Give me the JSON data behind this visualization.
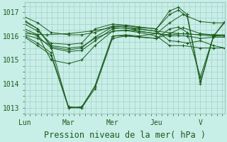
{
  "bg_color": "#c8eee8",
  "grid_color": "#a0c8c0",
  "line_color": "#1a5c1a",
  "marker": "+",
  "xlim": [
    0,
    4.55
  ],
  "ylim": [
    1012.75,
    1017.4
  ],
  "yticks": [
    1013,
    1014,
    1015,
    1016,
    1017
  ],
  "xtick_labels": [
    "Lun",
    "Mar",
    "Mer",
    "Jeu",
    "V"
  ],
  "xtick_pos": [
    0,
    1,
    2,
    3,
    4
  ],
  "xlabel": "Pression niveau de la mer( hPa )",
  "xlabel_fontsize": 8.5,
  "tick_fontsize": 7,
  "series": [
    {
      "x": [
        0,
        0.5,
        1.0,
        1.5,
        2.0,
        2.5,
        3.0,
        3.5,
        4.0,
        4.55
      ],
      "y": [
        1016.1,
        1016.05,
        1016.1,
        1016.2,
        1016.35,
        1016.3,
        1016.2,
        1016.1,
        1016.05,
        1016.05
      ]
    },
    {
      "x": [
        0,
        0.3,
        0.6,
        1.0,
        1.3,
        1.6,
        2.0,
        2.3,
        2.6,
        3.0,
        3.3,
        3.6,
        4.0,
        4.3,
        4.55
      ],
      "y": [
        1016.05,
        1015.9,
        1015.6,
        1013.0,
        1013.0,
        1013.8,
        1015.9,
        1016.0,
        1015.95,
        1015.9,
        1016.1,
        1016.35,
        1016.1,
        1016.05,
        1016.0
      ]
    },
    {
      "x": [
        0,
        0.3,
        0.6,
        1.0,
        1.3,
        1.6,
        2.0,
        2.3,
        2.6,
        3.0,
        3.3,
        3.6,
        4.0,
        4.3,
        4.55
      ],
      "y": [
        1016.0,
        1015.7,
        1015.3,
        1013.05,
        1013.0,
        1013.9,
        1016.0,
        1016.05,
        1016.0,
        1016.1,
        1016.55,
        1016.9,
        1016.6,
        1016.55,
        1016.55
      ]
    },
    {
      "x": [
        0,
        0.3,
        0.6,
        1.0,
        1.3,
        1.6,
        2.0,
        2.3,
        2.6,
        3.0,
        3.3,
        3.6,
        4.0,
        4.3,
        4.55
      ],
      "y": [
        1016.2,
        1016.0,
        1015.5,
        1015.35,
        1015.4,
        1015.8,
        1016.3,
        1016.35,
        1016.2,
        1016.1,
        1016.05,
        1016.1,
        1016.05,
        1016.0,
        1016.0
      ]
    },
    {
      "x": [
        0,
        0.3,
        0.6,
        1.0,
        1.3,
        1.6,
        2.0,
        2.3,
        2.6,
        3.0,
        3.3,
        3.6,
        4.0,
        4.3,
        4.55
      ],
      "y": [
        1016.3,
        1016.05,
        1015.0,
        1014.85,
        1015.0,
        1015.6,
        1016.2,
        1016.23,
        1016.15,
        1016.0,
        1015.6,
        1015.6,
        1015.5,
        1015.5,
        1015.5
      ]
    },
    {
      "x": [
        0,
        0.3,
        0.6,
        1.0,
        1.3,
        1.6,
        2.0,
        2.3,
        2.6,
        3.0,
        3.3,
        3.5,
        3.7,
        4.0,
        4.3,
        4.55
      ],
      "y": [
        1016.5,
        1016.2,
        1015.7,
        1015.65,
        1015.7,
        1016.3,
        1016.5,
        1016.45,
        1016.35,
        1016.3,
        1017.05,
        1017.2,
        1016.9,
        1014.1,
        1016.0,
        1016.6
      ]
    },
    {
      "x": [
        0,
        0.3,
        0.6,
        1.0,
        1.3,
        1.6,
        2.0,
        2.3,
        2.6,
        3.0,
        3.3,
        3.5,
        3.7,
        4.0,
        4.3,
        4.55
      ],
      "y": [
        1015.95,
        1015.6,
        1015.2,
        1013.0,
        1013.05,
        1013.9,
        1016.0,
        1016.02,
        1015.97,
        1015.9,
        1016.3,
        1016.37,
        1016.15,
        1014.3,
        1016.0,
        1016.02
      ]
    },
    {
      "x": [
        0,
        0.3,
        0.6,
        1.0,
        1.3,
        1.6,
        2.0,
        2.3,
        2.6,
        3.0,
        3.3,
        3.5,
        3.7,
        4.0,
        4.3,
        4.55
      ],
      "y": [
        1016.65,
        1016.3,
        1015.6,
        1015.5,
        1015.55,
        1015.9,
        1016.2,
        1016.25,
        1016.2,
        1016.1,
        1016.0,
        1016.02,
        1016.0,
        1015.9,
        1015.95,
        1015.95
      ]
    },
    {
      "x": [
        0,
        0.3,
        0.6,
        1.0,
        1.3,
        1.6,
        2.0,
        2.3,
        2.6,
        3.0,
        3.3,
        3.5,
        3.7,
        4.0,
        4.3,
        4.55
      ],
      "y": [
        1016.8,
        1016.55,
        1016.15,
        1016.05,
        1016.05,
        1016.15,
        1016.42,
        1016.45,
        1016.38,
        1016.3,
        1016.9,
        1017.08,
        1016.82,
        1014.0,
        1016.0,
        1016.55
      ]
    },
    {
      "x": [
        0,
        0.3,
        0.6,
        1.0,
        1.3,
        1.6,
        2.0,
        2.3,
        2.6,
        3.0,
        3.3,
        3.5,
        3.7,
        4.0,
        4.3,
        4.55
      ],
      "y": [
        1016.6,
        1016.3,
        1015.55,
        1015.42,
        1015.5,
        1015.95,
        1016.38,
        1016.4,
        1016.3,
        1016.2,
        1015.8,
        1015.77,
        1015.7,
        1015.8,
        1015.6,
        1015.5
      ]
    }
  ]
}
